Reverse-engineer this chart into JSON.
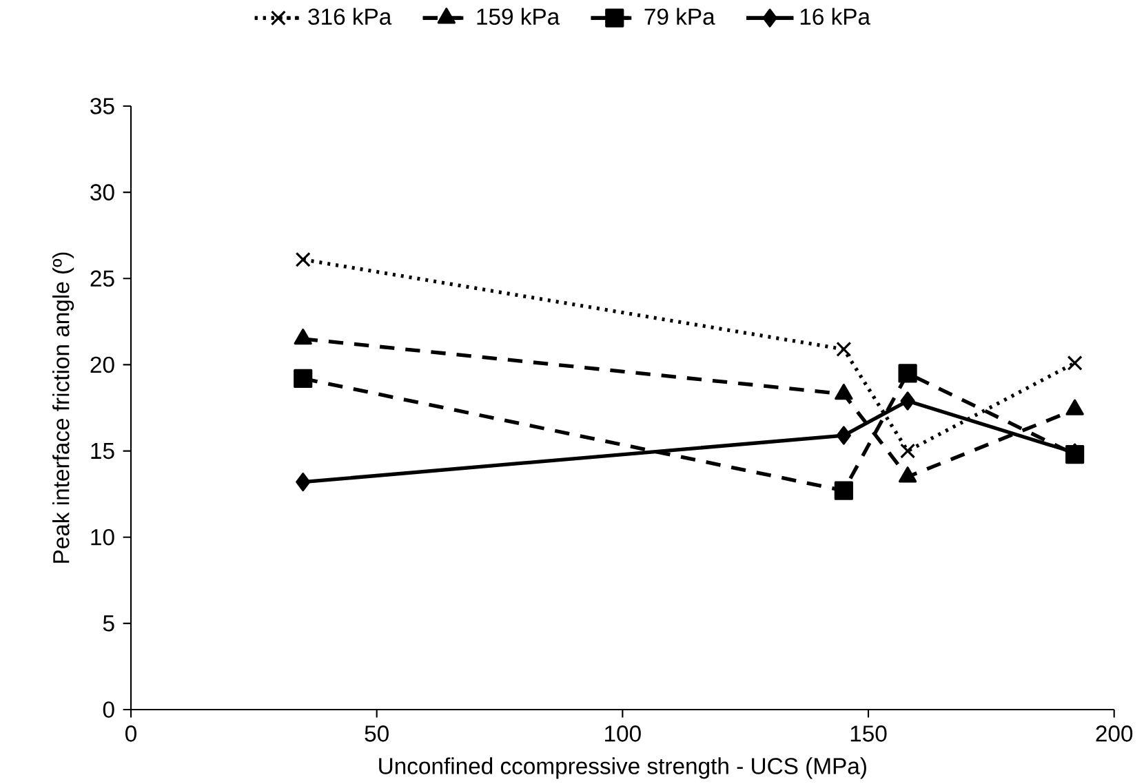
{
  "chart_data": {
    "type": "line",
    "xlabel": "Unconfined ccompressive strength - UCS (MPa)",
    "ylabel": "Peak interface friction angle (º)",
    "x": [
      35,
      145,
      158,
      192
    ],
    "series": [
      {
        "name": "316 kPa",
        "color": "#000000",
        "marker": "cross",
        "line_style": "dotted",
        "values": [
          26.1,
          20.9,
          15.0,
          20.1
        ]
      },
      {
        "name": "159 kPa",
        "color": "#000000",
        "marker": "triangle",
        "line_style": "dashed",
        "values": [
          21.5,
          18.3,
          13.5,
          17.4
        ]
      },
      {
        "name": "79 kPa",
        "color": "#000000",
        "marker": "square",
        "line_style": "dashed",
        "values": [
          19.2,
          12.7,
          19.5,
          14.8
        ]
      },
      {
        "name": "16 kPa",
        "color": "#000000",
        "marker": "diamond",
        "line_style": "solid",
        "values": [
          13.2,
          15.9,
          17.9,
          14.9
        ]
      }
    ],
    "xlim": [
      0,
      200
    ],
    "xticks": [
      0,
      50,
      100,
      150,
      200
    ],
    "ylim": [
      0,
      35
    ],
    "yticks": [
      0,
      5,
      10,
      15,
      20,
      25,
      30,
      35
    ],
    "grid": false,
    "legend": "top"
  }
}
